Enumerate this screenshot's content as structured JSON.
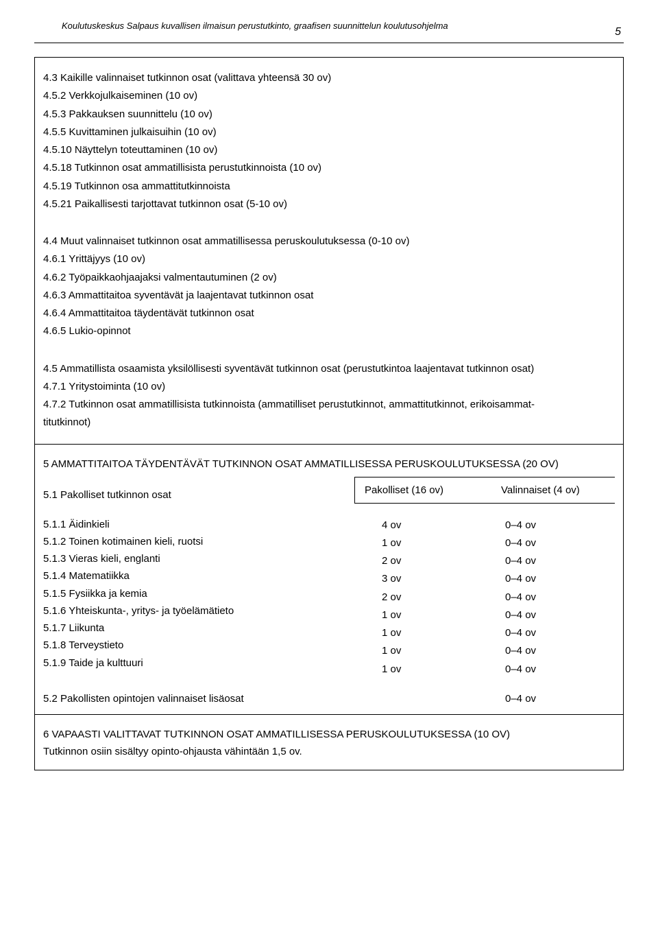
{
  "header": {
    "title": "Koulutuskeskus Salpaus kuvallisen ilmaisun perustutkinto, graafisen suunnittelun koulutusohjelma",
    "page_number": "5"
  },
  "section43": {
    "lines": [
      "4.3 Kaikille valinnaiset tutkinnon osat (valittava yhteensä 30 ov)",
      "4.5.2 Verkkojulkaiseminen (10 ov)",
      "4.5.3 Pakkauksen suunnittelu (10 ov)",
      "4.5.5 Kuvittaminen julkaisuihin (10 ov)",
      "4.5.10 Näyttelyn toteuttaminen (10 ov)",
      "4.5.18 Tutkinnon osat ammatillisista perustutkinnoista (10 ov)",
      "4.5.19 Tutkinnon osa ammattitutkinnoista",
      "4.5.21 Paikallisesti tarjottavat tutkinnon osat (5-10 ov)"
    ]
  },
  "section44": {
    "lines": [
      "4.4 Muut valinnaiset tutkinnon osat ammatillisessa peruskoulutuksessa (0-10 ov)",
      "4.6.1 Yrittäjyys (10 ov)",
      "4.6.2 Työpaikkaohjaajaksi valmentautuminen (2 ov)",
      "4.6.3 Ammattitaitoa syventävät ja laajentavat tutkinnon osat",
      "4.6.4 Ammattitaitoa täydentävät tutkinnon osat",
      "4.6.5 Lukio-opinnot"
    ]
  },
  "section45": {
    "lines": [
      "4.5 Ammatillista osaamista yksilöllisesti syventävät tutkinnon osat (perustutkintoa laajentavat tutkinnon osat)",
      "4.7.1 Yritystoiminta (10 ov)",
      "4.7.2 Tutkinnon osat ammatillisista tutkinnoista (ammatilliset perustutkinnot, ammattitutkinnot, erikoisammat-",
      "titutkinnot)"
    ]
  },
  "section5": {
    "title": "5 AMMATTITAITOA TÄYDENTÄVÄT TUTKINNON OSAT AMMATILLISESSA PERUSKOULUTUKSESSA (20 OV)",
    "header_row": {
      "left": "5.1 Pakolliset tutkinnon osat",
      "mid": "Pakolliset (16 ov)",
      "right": "Valinnaiset (4 ov)"
    },
    "subjects": [
      "5.1.1 Äidinkieli",
      "5.1.2 Toinen kotimainen kieli, ruotsi",
      "5.1.3 Vieras kieli, englanti",
      "5.1.4 Matematiikka",
      "5.1.5 Fysiikka ja kemia",
      "5.1.6 Yhteiskunta-, yritys- ja työelämätieto",
      "5.1.7 Liikunta",
      "5.1.8 Terveystieto",
      "5.1.9 Taide ja kulttuuri"
    ],
    "rows": [
      {
        "mid": "4 ov",
        "right": "0–4 ov"
      },
      {
        "mid": "1 ov",
        "right": "0–4 ov"
      },
      {
        "mid": "2 ov",
        "right": "0–4 ov"
      },
      {
        "mid": "3 ov",
        "right": "0–4 ov"
      },
      {
        "mid": "2 ov",
        "right": "0–4 ov"
      },
      {
        "mid": "1 ov",
        "right": "0–4 ov"
      },
      {
        "mid": "1 ov",
        "right": "0–4 ov"
      },
      {
        "mid": "1 ov",
        "right": "0–4 ov"
      },
      {
        "mid": "1 ov",
        "right": "0–4 ov"
      }
    ],
    "bottom_left": "5.2 Pakollisten opintojen valinnaiset lisäosat",
    "bottom_right": "0–4 ov"
  },
  "section6": {
    "title": "6 VAPAASTI VALITTAVAT TUTKINNON OSAT AMMATILLISESSA PERUSKOULUTUKSESSA (10 OV)",
    "footer": "Tutkinnon osiin sisältyy opinto-ohjausta vähintään 1,5 ov."
  }
}
